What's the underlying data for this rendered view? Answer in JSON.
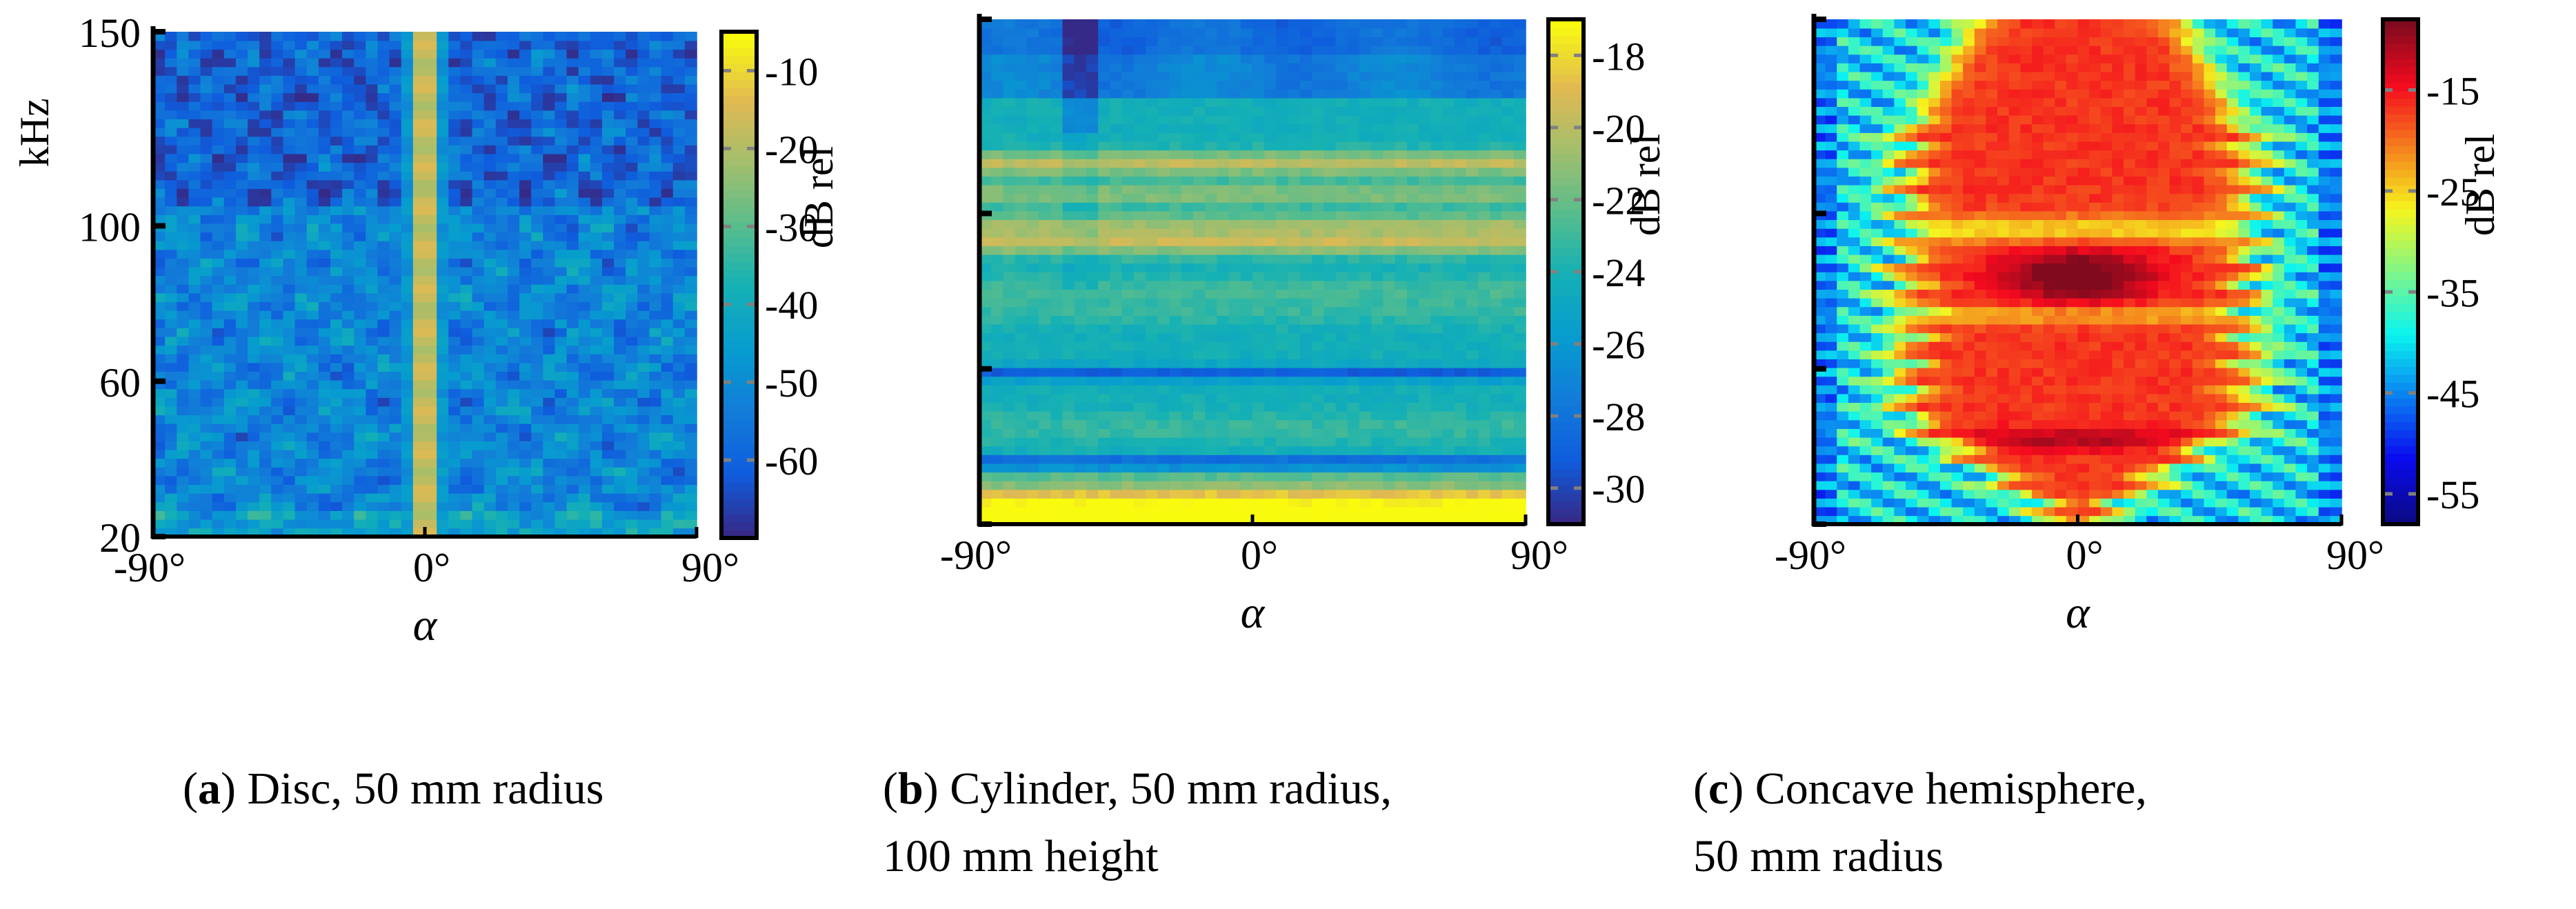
{
  "chart_data": [
    {
      "type": "heatmap",
      "panel_label": "a",
      "title": "Disc, 50 mm radius",
      "xlabel": "α",
      "ylabel": "kHz",
      "xlim": [
        -90,
        90
      ],
      "ylim": [
        20,
        150
      ],
      "x_ticks": [
        "-90°",
        "0°",
        "90°"
      ],
      "y_ticks": [
        "20",
        "60",
        "100",
        "150"
      ],
      "colorbar_label": "dB rel",
      "colorbar_range": [
        -70,
        -5
      ],
      "colorbar_ticks": [
        "-10",
        "-20",
        "-30",
        "-40",
        "-50",
        "-60"
      ],
      "show_y_ticklabels": true
    },
    {
      "type": "heatmap",
      "panel_label": "b",
      "title": "Cylinder, 50 mm radius,",
      "title_line2": "100 mm height",
      "xlabel": "α",
      "xlim": [
        -90,
        90
      ],
      "ylim": [
        20,
        150
      ],
      "x_ticks": [
        "-90°",
        "0°",
        "90°"
      ],
      "colorbar_label": "dB rel",
      "colorbar_range": [
        -31,
        -17
      ],
      "colorbar_ticks": [
        "-18",
        "-20",
        "-22",
        "-24",
        "-26",
        "-28",
        "-30"
      ],
      "show_y_ticklabels": false
    },
    {
      "type": "heatmap",
      "panel_label": "c",
      "title": "Concave hemisphere,",
      "title_line2": "50 mm radius",
      "xlabel": "α",
      "xlim": [
        -90,
        90
      ],
      "ylim": [
        20,
        150
      ],
      "x_ticks": [
        "-90°",
        "0°",
        "90°"
      ],
      "colorbar_label": "dB rel",
      "colorbar_range": [
        -58,
        -8
      ],
      "colorbar_ticks": [
        "-15",
        "-25",
        "-35",
        "-45",
        "-55"
      ],
      "show_y_ticklabels": false
    }
  ]
}
